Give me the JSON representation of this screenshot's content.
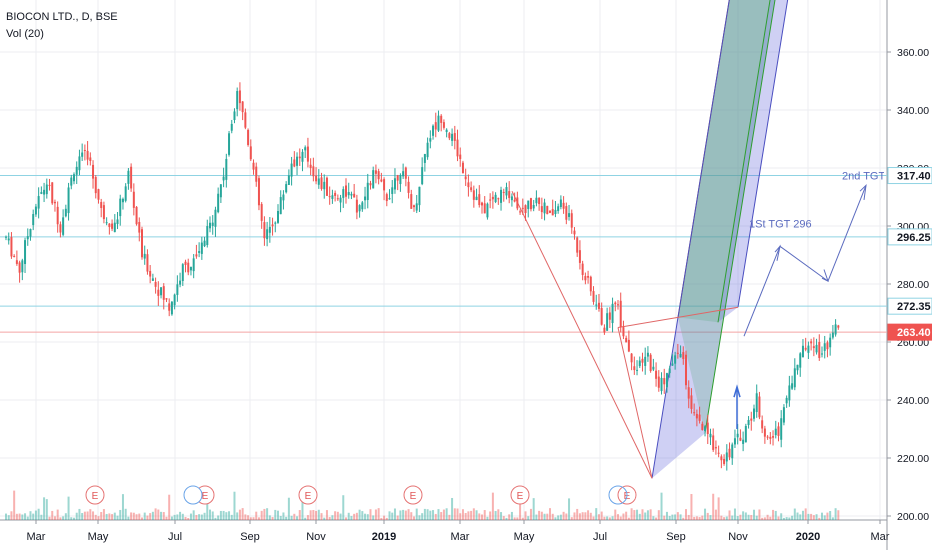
{
  "legend": {
    "title": "BIOCON LTD., D, BSE",
    "volume": "Vol (20)"
  },
  "colors": {
    "up": "#26a69a",
    "down": "#ef5350",
    "level": "#8fd3e3",
    "last": "#ef5350",
    "fork": "#4a4ec0",
    "annot": "#5b6bbf"
  },
  "chart_data": {
    "type": "candlestick",
    "x_ticks": [
      "Mar",
      "May",
      "Jul",
      "Sep",
      "Nov",
      "2019",
      "Mar",
      "May",
      "Jul",
      "Sep",
      "Nov",
      "2020",
      "Mar"
    ],
    "y_ticks": [
      200,
      220,
      240,
      260,
      280,
      300,
      320,
      340,
      360
    ],
    "ylim": [
      195,
      372
    ],
    "grid": true,
    "price_labels": [
      {
        "value": 317.4,
        "text": "317.40",
        "kind": "level"
      },
      {
        "value": 296.25,
        "text": "296.25",
        "kind": "level"
      },
      {
        "value": 272.35,
        "text": "272.35",
        "kind": "level"
      },
      {
        "value": 263.4,
        "text": "263.40",
        "kind": "last"
      }
    ],
    "annotations": [
      {
        "text": "2nd TGT 317"
      },
      {
        "text": "1St TGT 296"
      }
    ],
    "earnings_markers": [
      "E",
      "E",
      "E",
      "E",
      "E",
      "E",
      "E"
    ],
    "price_anchors": [
      [
        0,
        296
      ],
      [
        5,
        285
      ],
      [
        10,
        305
      ],
      [
        15,
        315
      ],
      [
        20,
        300
      ],
      [
        25,
        320
      ],
      [
        30,
        325
      ],
      [
        35,
        305
      ],
      [
        40,
        300
      ],
      [
        45,
        318
      ],
      [
        50,
        290
      ],
      [
        55,
        280
      ],
      [
        60,
        272
      ],
      [
        65,
        285
      ],
      [
        70,
        288
      ],
      [
        75,
        300
      ],
      [
        80,
        318
      ],
      [
        85,
        348
      ],
      [
        90,
        325
      ],
      [
        95,
        295
      ],
      [
        100,
        305
      ],
      [
        105,
        322
      ],
      [
        110,
        325
      ],
      [
        115,
        315
      ],
      [
        120,
        310
      ],
      [
        125,
        312
      ],
      [
        130,
        305
      ],
      [
        135,
        318
      ],
      [
        140,
        310
      ],
      [
        145,
        320
      ],
      [
        150,
        305
      ],
      [
        155,
        330
      ],
      [
        160,
        338
      ],
      [
        165,
        328
      ],
      [
        170,
        315
      ],
      [
        175,
        305
      ],
      [
        180,
        310
      ],
      [
        185,
        312
      ],
      [
        190,
        305
      ],
      [
        195,
        310
      ],
      [
        200,
        303
      ],
      [
        204,
        308
      ],
      [
        208,
        300
      ],
      [
        212,
        285
      ],
      [
        216,
        275
      ],
      [
        220,
        265
      ],
      [
        224,
        275
      ],
      [
        228,
        260
      ],
      [
        232,
        250
      ],
      [
        236,
        255
      ],
      [
        240,
        245
      ],
      [
        244,
        250
      ],
      [
        248,
        258
      ],
      [
        252,
        235
      ],
      [
        256,
        230
      ],
      [
        260,
        225
      ],
      [
        264,
        220
      ],
      [
        268,
        225
      ],
      [
        272,
        230
      ],
      [
        276,
        240
      ],
      [
        280,
        225
      ],
      [
        284,
        230
      ],
      [
        288,
        245
      ],
      [
        292,
        255
      ],
      [
        296,
        262
      ],
      [
        300,
        255
      ],
      [
        304,
        265
      ],
      [
        306,
        263.4
      ]
    ]
  }
}
